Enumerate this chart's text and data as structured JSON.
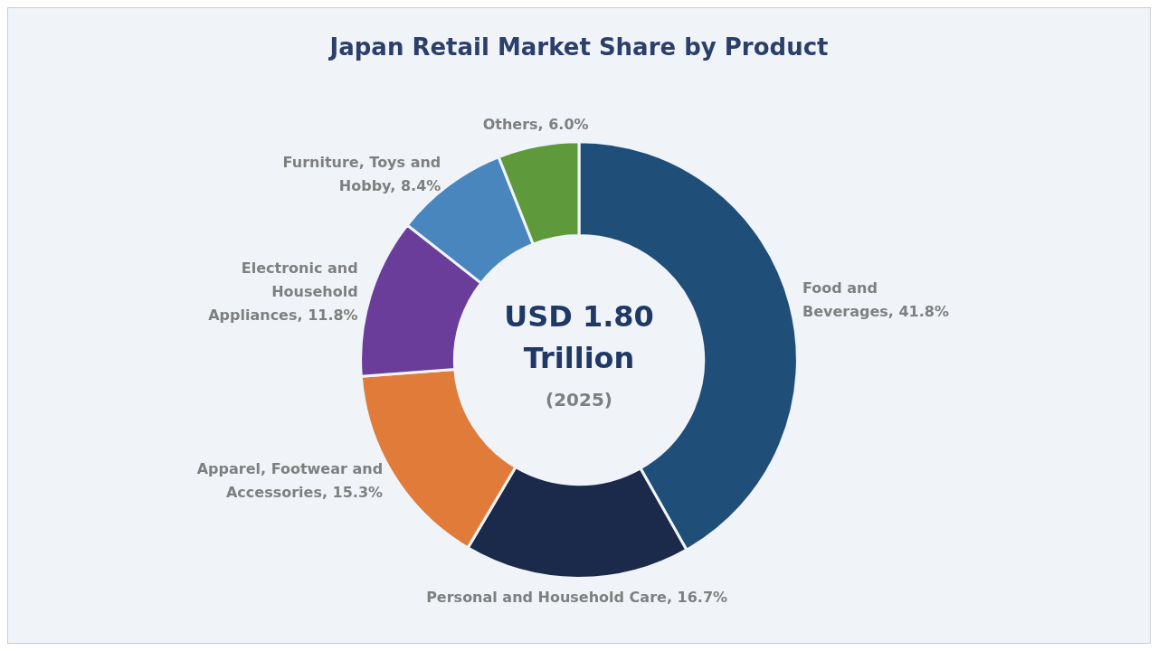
{
  "chart_data": {
    "type": "donut",
    "title": "Japan Retail Market Share by Product",
    "categories": [
      "Food and Beverages",
      "Personal and Household Care",
      "Apparel, Footwear and Accessories",
      "Electronic and Household Appliances",
      "Furniture, Toys and Hobby",
      "Others"
    ],
    "value_labels": [
      "41.8%",
      "16.7%",
      "15.3%",
      "11.8%",
      "8.4%",
      "6.0%"
    ],
    "values": [
      41.8,
      16.7,
      15.3,
      11.8,
      8.4,
      6.0
    ],
    "colors": [
      "#1f4e79",
      "#1b2a4a",
      "#e07b39",
      "#6a3d9a",
      "#4a86be",
      "#5e9a3c"
    ],
    "annotations": [
      "USD 1.80 Trillion",
      "(2025)"
    ]
  }
}
